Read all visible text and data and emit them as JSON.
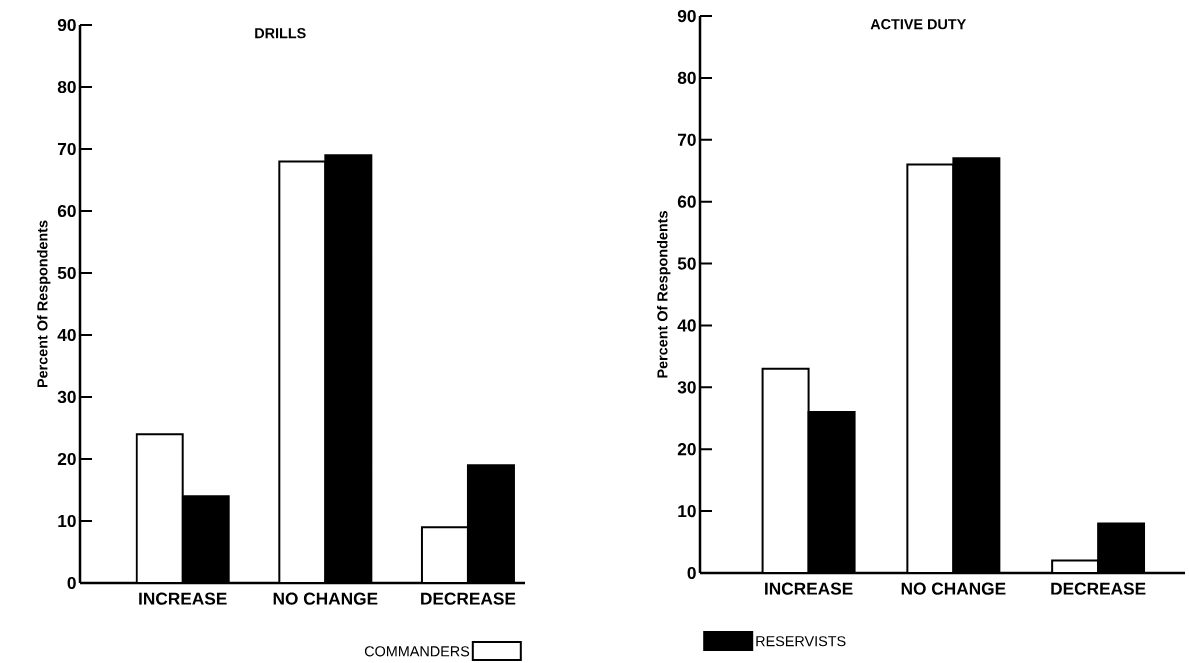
{
  "chart_data": [
    {
      "type": "bar",
      "title": "DRILLS",
      "ylabel": "Percent Of Respondents",
      "categories": [
        "INCREASE",
        "NO CHANGE",
        "DECREASE"
      ],
      "ylim": [
        0,
        90
      ],
      "yticks": [
        0,
        10,
        20,
        30,
        40,
        50,
        60,
        70,
        80,
        90
      ],
      "grid": false,
      "legend": "bottom right",
      "series": [
        {
          "name": "COMMANDERS",
          "color": "#ffffff",
          "values": [
            24,
            68,
            9
          ]
        },
        {
          "color": "#000000",
          "values": [
            14,
            69,
            19
          ]
        }
      ]
    },
    {
      "type": "bar",
      "title": "ACTIVE DUTY",
      "ylabel": "Percent Of Respondents",
      "categories": [
        "INCREASE",
        "NO CHANGE",
        "DECREASE"
      ],
      "ylim": [
        0,
        90
      ],
      "yticks": [
        0,
        10,
        20,
        30,
        40,
        50,
        60,
        70,
        80,
        90
      ],
      "grid": false,
      "legend": "bottom left",
      "series": [
        {
          "color": "#ffffff",
          "values": [
            33,
            66,
            2
          ]
        },
        {
          "name": "RESERVISTS",
          "color": "#000000",
          "values": [
            26,
            67,
            8
          ]
        }
      ]
    }
  ]
}
